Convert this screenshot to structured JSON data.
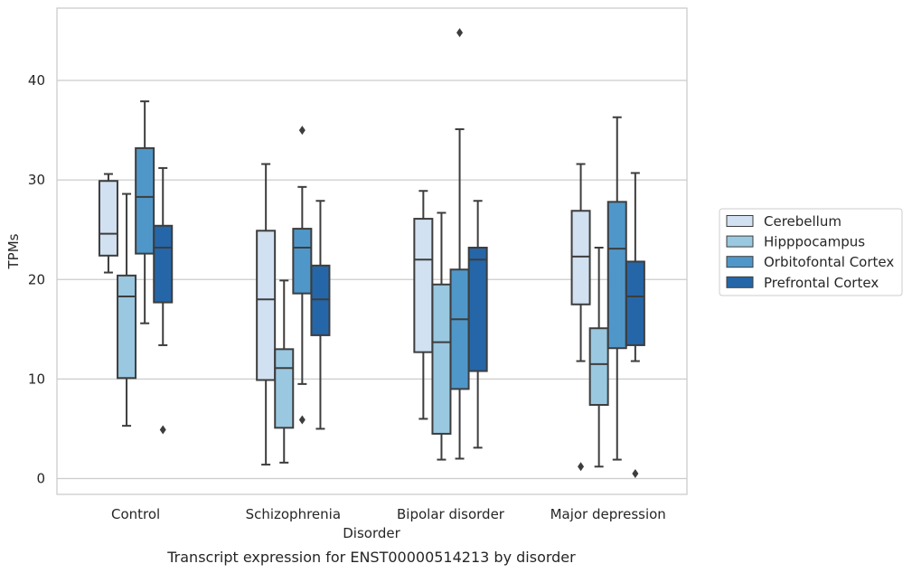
{
  "chart_data": {
    "type": "box",
    "title": "",
    "caption": "Transcript expression for ENST00000514213 by disorder",
    "xlabel": "Disorder",
    "ylabel": "TPMs",
    "ylim": [
      -1.5,
      47
    ],
    "yticks": [
      0,
      10,
      20,
      30,
      40
    ],
    "grid": "horizontal",
    "legend_position": "right",
    "categories": [
      "Control",
      "Schizophrenia",
      "Bipolar disorder",
      "Major depression"
    ],
    "series": [
      {
        "name": "Cerebellum",
        "color": "#d1e1f1",
        "boxes": [
          {
            "whislo": 20.7,
            "q1": 22.4,
            "med": 24.6,
            "q3": 29.9,
            "whishi": 30.6,
            "fliers": []
          },
          {
            "whislo": 1.4,
            "q1": 9.9,
            "med": 18.0,
            "q3": 24.9,
            "whishi": 31.6,
            "fliers": []
          },
          {
            "whislo": 6.0,
            "q1": 12.7,
            "med": 22.0,
            "q3": 26.1,
            "whishi": 28.9,
            "fliers": []
          },
          {
            "whislo": 11.8,
            "q1": 17.5,
            "med": 22.3,
            "q3": 26.9,
            "whishi": 31.6,
            "fliers": [
              1.2
            ]
          }
        ]
      },
      {
        "name": "Hipppocampus",
        "color": "#9ac8e0",
        "boxes": [
          {
            "whislo": 5.3,
            "q1": 10.1,
            "med": 18.3,
            "q3": 20.4,
            "whishi": 28.6,
            "fliers": []
          },
          {
            "whislo": 1.6,
            "q1": 5.1,
            "med": 11.1,
            "q3": 13.0,
            "whishi": 19.9,
            "fliers": []
          },
          {
            "whislo": 1.9,
            "q1": 4.5,
            "med": 13.7,
            "q3": 19.5,
            "whishi": 26.7,
            "fliers": []
          },
          {
            "whislo": 1.2,
            "q1": 7.4,
            "med": 11.5,
            "q3": 15.1,
            "whishi": 23.2,
            "fliers": []
          }
        ]
      },
      {
        "name": "Orbitofontal Cortex",
        "color": "#5097c9",
        "boxes": [
          {
            "whislo": 15.6,
            "q1": 22.6,
            "med": 28.3,
            "q3": 33.2,
            "whishi": 37.9,
            "fliers": []
          },
          {
            "whislo": 9.5,
            "q1": 18.6,
            "med": 23.2,
            "q3": 25.1,
            "whishi": 29.3,
            "fliers": [
              35.0,
              5.9
            ]
          },
          {
            "whislo": 2.0,
            "q1": 9.0,
            "med": 16.0,
            "q3": 21.0,
            "whishi": 35.1,
            "fliers": [
              44.8
            ]
          },
          {
            "whislo": 1.9,
            "q1": 13.1,
            "med": 23.1,
            "q3": 27.8,
            "whishi": 36.3,
            "fliers": []
          }
        ]
      },
      {
        "name": "Prefrontal Cortex",
        "color": "#2566a8",
        "boxes": [
          {
            "whislo": 13.4,
            "q1": 17.7,
            "med": 23.2,
            "q3": 25.4,
            "whishi": 31.2,
            "fliers": [
              4.9
            ]
          },
          {
            "whislo": 5.0,
            "q1": 14.4,
            "med": 18.0,
            "q3": 21.4,
            "whishi": 27.9,
            "fliers": []
          },
          {
            "whislo": 3.1,
            "q1": 10.8,
            "med": 22.0,
            "q3": 23.2,
            "whishi": 27.9,
            "fliers": []
          },
          {
            "whislo": 11.8,
            "q1": 13.4,
            "med": 18.3,
            "q3": 21.8,
            "whishi": 30.7,
            "fliers": [
              0.5
            ]
          }
        ]
      }
    ]
  }
}
